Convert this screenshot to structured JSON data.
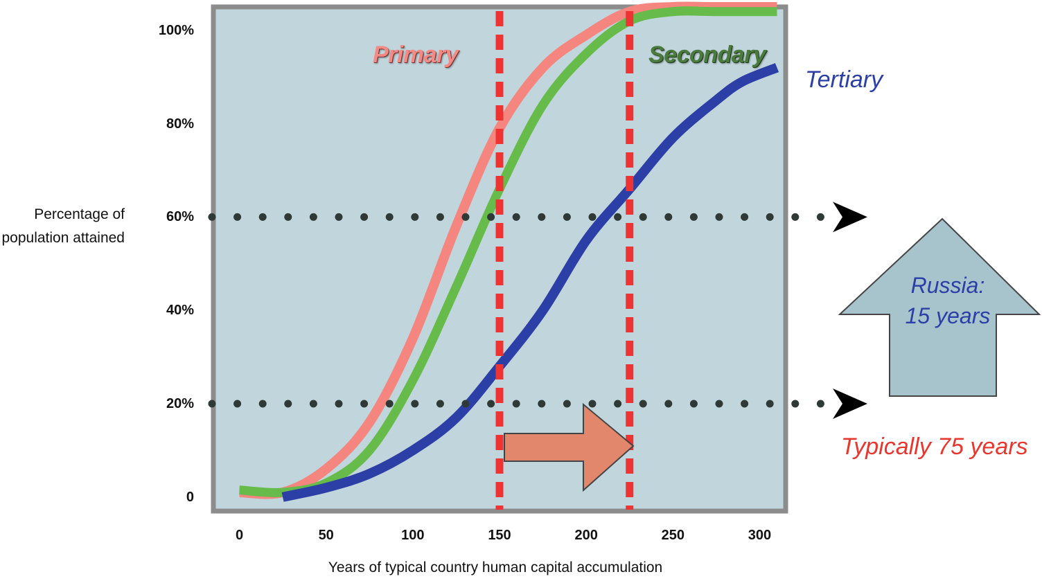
{
  "chart_data": {
    "type": "line",
    "title": "",
    "xlabel": "Years of typical country human capital accumulation",
    "ylabel": "Percentage of population attained",
    "xlim": [
      -15,
      315
    ],
    "ylim": [
      -3,
      105
    ],
    "x_ticks": [
      0,
      50,
      100,
      150,
      200,
      250,
      300
    ],
    "x_tick_labels": [
      "0",
      "50",
      "100",
      "150",
      "200",
      "250",
      "300"
    ],
    "y_ticks": [
      0,
      20,
      40,
      60,
      80,
      100
    ],
    "y_tick_labels": [
      "0",
      "20%",
      "40%",
      "60%",
      "80%",
      "100%"
    ],
    "grid": false,
    "series": [
      {
        "name": "Primary",
        "color": "#f4857f",
        "x": [
          0,
          25,
          50,
          75,
          100,
          125,
          150,
          175,
          200,
          225,
          250,
          275,
          310
        ],
        "y": [
          1,
          1,
          6,
          16,
          34,
          58,
          79,
          92,
          99,
          104,
          105,
          105,
          105
        ]
      },
      {
        "name": "Secondary",
        "color": "#66bb4a",
        "x": [
          0,
          25,
          50,
          75,
          100,
          125,
          150,
          175,
          200,
          225,
          250,
          275,
          310
        ],
        "y": [
          1.5,
          1,
          3,
          10,
          25,
          45,
          66,
          84,
          95,
          102,
          104,
          104,
          104
        ]
      },
      {
        "name": "Tertiary",
        "color": "#2b3fa6",
        "x": [
          25,
          50,
          75,
          100,
          125,
          150,
          175,
          200,
          225,
          250,
          275,
          290,
          310
        ],
        "y": [
          0,
          2,
          5,
          10,
          17,
          28,
          40,
          55,
          66,
          77,
          85,
          89,
          92
        ]
      }
    ],
    "reference_lines": {
      "horizontal_y": [
        60,
        20
      ],
      "vertical_x": [
        150,
        225
      ]
    }
  },
  "annotations": {
    "russia_line1": "Russia:",
    "russia_line2": "15 years",
    "typical": "Typically 75 years"
  }
}
